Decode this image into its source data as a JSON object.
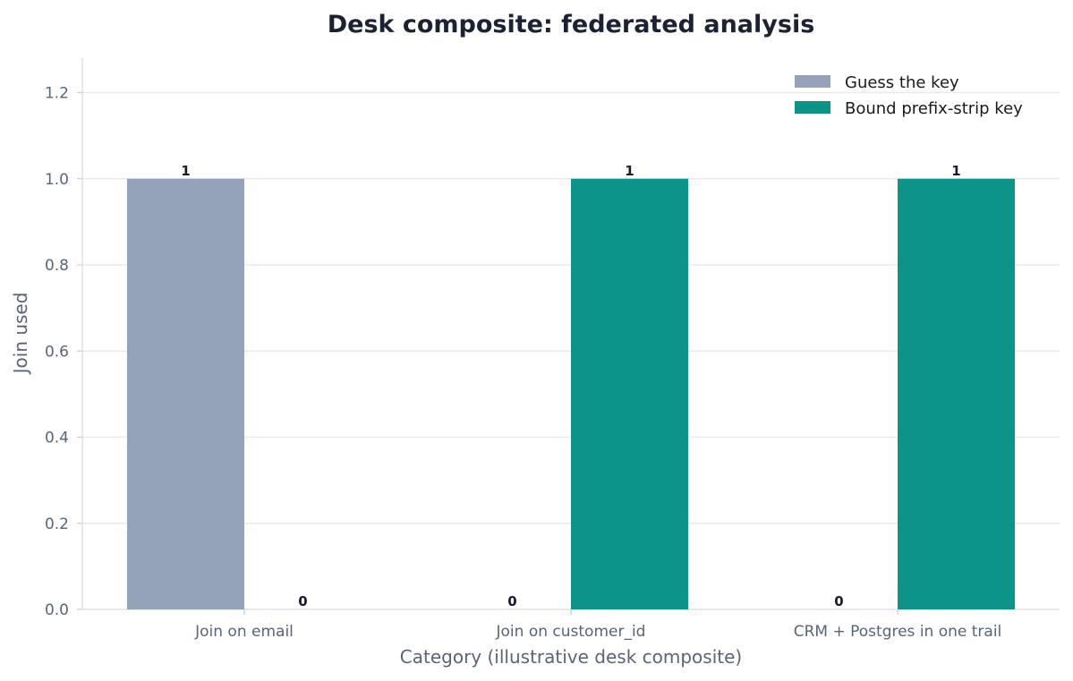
{
  "chart_data": {
    "type": "bar",
    "title": "Desk composite: federated analysis",
    "xlabel": "Category (illustrative desk composite)",
    "ylabel": "Join used",
    "categories": [
      "Join on email",
      "Join on customer_id",
      "CRM + Postgres in one trail"
    ],
    "series": [
      {
        "name": "Guess the key",
        "color": "#94a3b8",
        "values": [
          1,
          0,
          0
        ]
      },
      {
        "name": "Bound prefix-strip key",
        "color": "#0d9488",
        "values": [
          0,
          1,
          1
        ]
      }
    ],
    "ylim": [
      0,
      1.28
    ],
    "yticks": [
      0.0,
      0.2,
      0.4,
      0.6,
      0.8,
      1.0,
      1.2
    ],
    "ytick_labels": [
      "0.0",
      "0.2",
      "0.4",
      "0.6",
      "0.8",
      "1.0",
      "1.2"
    ],
    "grid": "horizontal",
    "legend_position": "top-right"
  }
}
